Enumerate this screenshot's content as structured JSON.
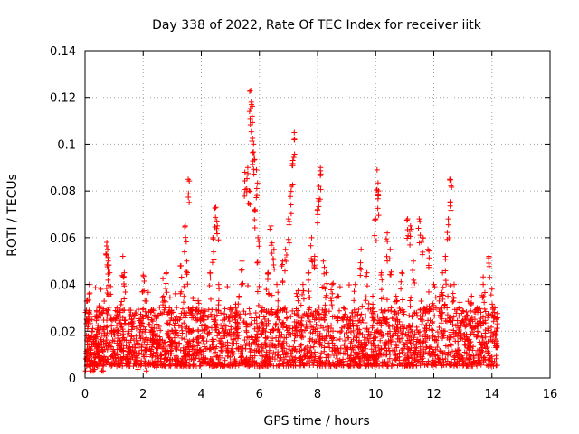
{
  "chart_data": {
    "type": "scatter",
    "title": "Day 338 of 2022, Rate Of TEC Index for receiver iitk",
    "xlabel": "GPS time / hours",
    "ylabel": "ROTI / TECUs",
    "xlim": [
      0,
      16
    ],
    "ylim": [
      0,
      0.14
    ],
    "xticks": [
      "0",
      "2",
      "4",
      "6",
      "8",
      "10",
      "12",
      "14",
      "16"
    ],
    "yticks": [
      "0",
      "0.02",
      "0.04",
      "0.06",
      "0.08",
      "0.1",
      "0.12",
      "0.14"
    ],
    "grid": true,
    "marker": "+",
    "color": "#ff0000",
    "series": [
      {
        "points": [
          [
            0.05,
            0.008
          ],
          [
            0.08,
            0.033
          ],
          [
            0.1,
            0.018
          ],
          [
            0.12,
            0.026
          ],
          [
            0.15,
            0.04
          ],
          [
            0.2,
            0.012
          ],
          [
            0.3,
            0.01
          ],
          [
            0.4,
            0.015
          ],
          [
            0.5,
            0.014
          ],
          [
            0.6,
            0.012
          ],
          [
            0.75,
            0.058
          ],
          [
            0.78,
            0.055
          ],
          [
            0.8,
            0.05
          ],
          [
            0.85,
            0.045
          ],
          [
            0.9,
            0.025
          ],
          [
            1.0,
            0.02
          ],
          [
            1.1,
            0.03
          ],
          [
            1.2,
            0.028
          ],
          [
            1.3,
            0.052
          ],
          [
            1.35,
            0.045
          ],
          [
            1.5,
            0.02
          ],
          [
            1.6,
            0.025
          ],
          [
            1.8,
            0.015
          ],
          [
            2.0,
            0.044
          ],
          [
            2.1,
            0.012
          ],
          [
            2.3,
            0.02
          ],
          [
            2.5,
            0.016
          ],
          [
            2.7,
            0.035
          ],
          [
            2.8,
            0.045
          ],
          [
            2.9,
            0.03
          ],
          [
            3.0,
            0.02
          ],
          [
            3.1,
            0.025
          ],
          [
            3.3,
            0.048
          ],
          [
            3.45,
            0.065
          ],
          [
            3.5,
            0.05
          ],
          [
            3.55,
            0.085
          ],
          [
            3.7,
            0.03
          ],
          [
            3.9,
            0.02
          ],
          [
            4.1,
            0.025
          ],
          [
            4.3,
            0.045
          ],
          [
            4.4,
            0.06
          ],
          [
            4.5,
            0.073
          ],
          [
            4.55,
            0.065
          ],
          [
            4.6,
            0.04
          ],
          [
            4.8,
            0.025
          ],
          [
            5.0,
            0.03
          ],
          [
            5.2,
            0.028
          ],
          [
            5.3,
            0.035
          ],
          [
            5.4,
            0.05
          ],
          [
            5.5,
            0.088
          ],
          [
            5.6,
            0.09
          ],
          [
            5.65,
            0.08
          ],
          [
            5.7,
            0.123
          ],
          [
            5.72,
            0.118
          ],
          [
            5.75,
            0.112
          ],
          [
            5.8,
            0.1
          ],
          [
            5.82,
            0.095
          ],
          [
            5.85,
            0.072
          ],
          [
            5.9,
            0.089
          ],
          [
            5.95,
            0.06
          ],
          [
            6.1,
            0.03
          ],
          [
            6.3,
            0.045
          ],
          [
            6.4,
            0.065
          ],
          [
            6.5,
            0.055
          ],
          [
            6.6,
            0.04
          ],
          [
            6.8,
            0.05
          ],
          [
            6.9,
            0.055
          ],
          [
            7.0,
            0.068
          ],
          [
            7.1,
            0.082
          ],
          [
            7.15,
            0.093
          ],
          [
            7.2,
            0.105
          ],
          [
            7.3,
            0.035
          ],
          [
            7.5,
            0.04
          ],
          [
            7.7,
            0.045
          ],
          [
            7.8,
            0.06
          ],
          [
            7.9,
            0.052
          ],
          [
            8.0,
            0.072
          ],
          [
            8.05,
            0.082
          ],
          [
            8.1,
            0.09
          ],
          [
            8.2,
            0.05
          ],
          [
            8.3,
            0.045
          ],
          [
            8.5,
            0.04
          ],
          [
            8.7,
            0.035
          ],
          [
            8.9,
            0.03
          ],
          [
            9.1,
            0.025
          ],
          [
            9.3,
            0.04
          ],
          [
            9.5,
            0.055
          ],
          [
            9.7,
            0.045
          ],
          [
            9.9,
            0.035
          ],
          [
            10.0,
            0.068
          ],
          [
            10.05,
            0.089
          ],
          [
            10.1,
            0.08
          ],
          [
            10.2,
            0.045
          ],
          [
            10.4,
            0.062
          ],
          [
            10.5,
            0.055
          ],
          [
            10.7,
            0.035
          ],
          [
            10.9,
            0.045
          ],
          [
            11.1,
            0.068
          ],
          [
            11.2,
            0.065
          ],
          [
            11.3,
            0.05
          ],
          [
            11.5,
            0.068
          ],
          [
            11.6,
            0.06
          ],
          [
            11.8,
            0.055
          ],
          [
            12.0,
            0.04
          ],
          [
            12.2,
            0.035
          ],
          [
            12.3,
            0.045
          ],
          [
            12.4,
            0.052
          ],
          [
            12.5,
            0.068
          ],
          [
            12.55,
            0.085
          ],
          [
            12.6,
            0.083
          ],
          [
            12.7,
            0.04
          ],
          [
            12.9,
            0.03
          ],
          [
            13.1,
            0.025
          ],
          [
            13.3,
            0.035
          ],
          [
            13.5,
            0.03
          ],
          [
            13.7,
            0.04
          ],
          [
            13.9,
            0.052
          ],
          [
            14.0,
            0.038
          ],
          [
            14.1,
            0.03
          ],
          [
            14.15,
            0.02
          ]
        ]
      }
    ],
    "baseline_band": {
      "x_range": [
        0,
        14.2
      ],
      "typical_low": 0.005,
      "typical_high": 0.03
    }
  }
}
